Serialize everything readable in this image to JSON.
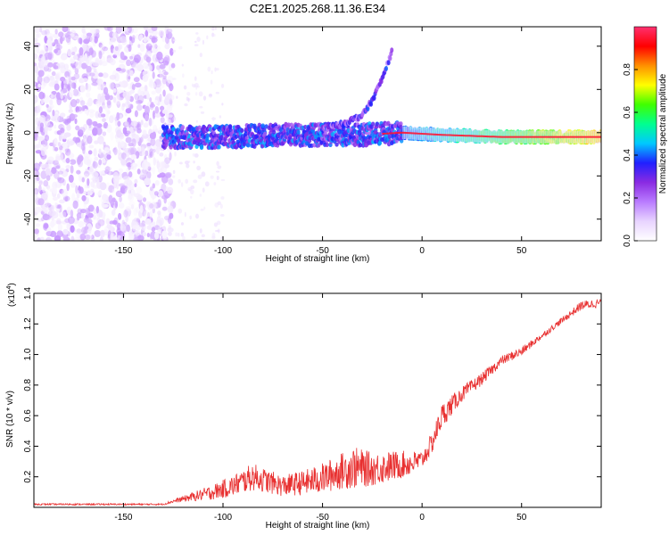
{
  "chart_data": [
    {
      "type": "heatmap",
      "title": "C2E1.2025.268.11.36.E34",
      "xlabel": "Height of straight line (km)",
      "ylabel": "Frequency (Hz)",
      "xlim": [
        -195,
        90
      ],
      "ylim": [
        -50,
        49
      ],
      "xticks": [
        -150,
        -100,
        -50,
        0,
        50
      ],
      "yticks": [
        -40,
        -20,
        0,
        20,
        40
      ],
      "colorbar": {
        "label": "Normalized spectral amplitude",
        "range": [
          0,
          1
        ],
        "ticks": [
          0.0,
          0.2,
          0.4,
          0.6,
          0.8
        ],
        "tick_labels": [
          "0.0",
          "0.2",
          "0.4",
          "0.6",
          "0.8"
        ],
        "colors": [
          "#ffffff",
          "#e8d4ff",
          "#b97cff",
          "#8a2be2",
          "#2020ff",
          "#00c8ff",
          "#00ff90",
          "#40ff00",
          "#ffff00",
          "#ff9000",
          "#ff0000",
          "#ff3070"
        ]
      },
      "features": [
        {
          "name": "noise-field",
          "x_range": [
            -195,
            -125
          ],
          "y_range": [
            -50,
            49
          ],
          "amplitude": 0.15
        },
        {
          "name": "sparse-noise",
          "x_range": [
            -125,
            -100
          ],
          "y_range": [
            -50,
            49
          ],
          "amplitude": 0.05
        },
        {
          "name": "carrier-band",
          "x": [
            -130,
            -100,
            -70,
            -50,
            -30,
            -10,
            10,
            40,
            70,
            90
          ],
          "y": [
            -2,
            -2,
            -1,
            -1,
            -1,
            0,
            -1,
            -2,
            -2,
            -2
          ]
        },
        {
          "name": "rising-arc",
          "x": [
            -50,
            -40,
            -30,
            -25,
            -20,
            -15
          ],
          "y": [
            2,
            4,
            8,
            15,
            25,
            38
          ]
        }
      ]
    },
    {
      "type": "line",
      "xlabel": "Height of straight line (km)",
      "ylabel": "SNR (10 * v/v)",
      "multiplier": "(x10",
      "exponent": "4",
      "multiplier_close": ")",
      "xlim": [
        -195,
        90
      ],
      "ylim": [
        0,
        1.4
      ],
      "xticks": [
        -150,
        -100,
        -50,
        0,
        50
      ],
      "yticks": [
        0.2,
        0.4,
        0.6,
        0.8,
        1.0,
        1.2,
        1.4
      ],
      "ytick_labels": [
        "0.2",
        "0.4",
        "0.6",
        "0.8",
        "1.0",
        "1.2",
        "1.4"
      ],
      "color": "#e83030",
      "series": [
        {
          "name": "SNR",
          "x": [
            -195,
            -170,
            -150,
            -130,
            -125,
            -115,
            -105,
            -95,
            -85,
            -80,
            -70,
            -60,
            -50,
            -40,
            -35,
            -25,
            -15,
            -5,
            0,
            5,
            10,
            20,
            30,
            40,
            50,
            60,
            70,
            80,
            90
          ],
          "y": [
            0.02,
            0.02,
            0.02,
            0.02,
            0.04,
            0.07,
            0.1,
            0.14,
            0.2,
            0.18,
            0.14,
            0.16,
            0.19,
            0.24,
            0.26,
            0.25,
            0.27,
            0.29,
            0.31,
            0.42,
            0.6,
            0.74,
            0.84,
            0.96,
            1.02,
            1.12,
            1.22,
            1.32,
            1.34
          ],
          "spread": [
            0.005,
            0.005,
            0.005,
            0.005,
            0.01,
            0.03,
            0.05,
            0.07,
            0.09,
            0.08,
            0.07,
            0.08,
            0.1,
            0.12,
            0.14,
            0.11,
            0.1,
            0.08,
            0.06,
            0.07,
            0.08,
            0.05,
            0.04,
            0.03,
            0.03,
            0.02,
            0.02,
            0.03,
            0.03
          ]
        }
      ]
    }
  ]
}
